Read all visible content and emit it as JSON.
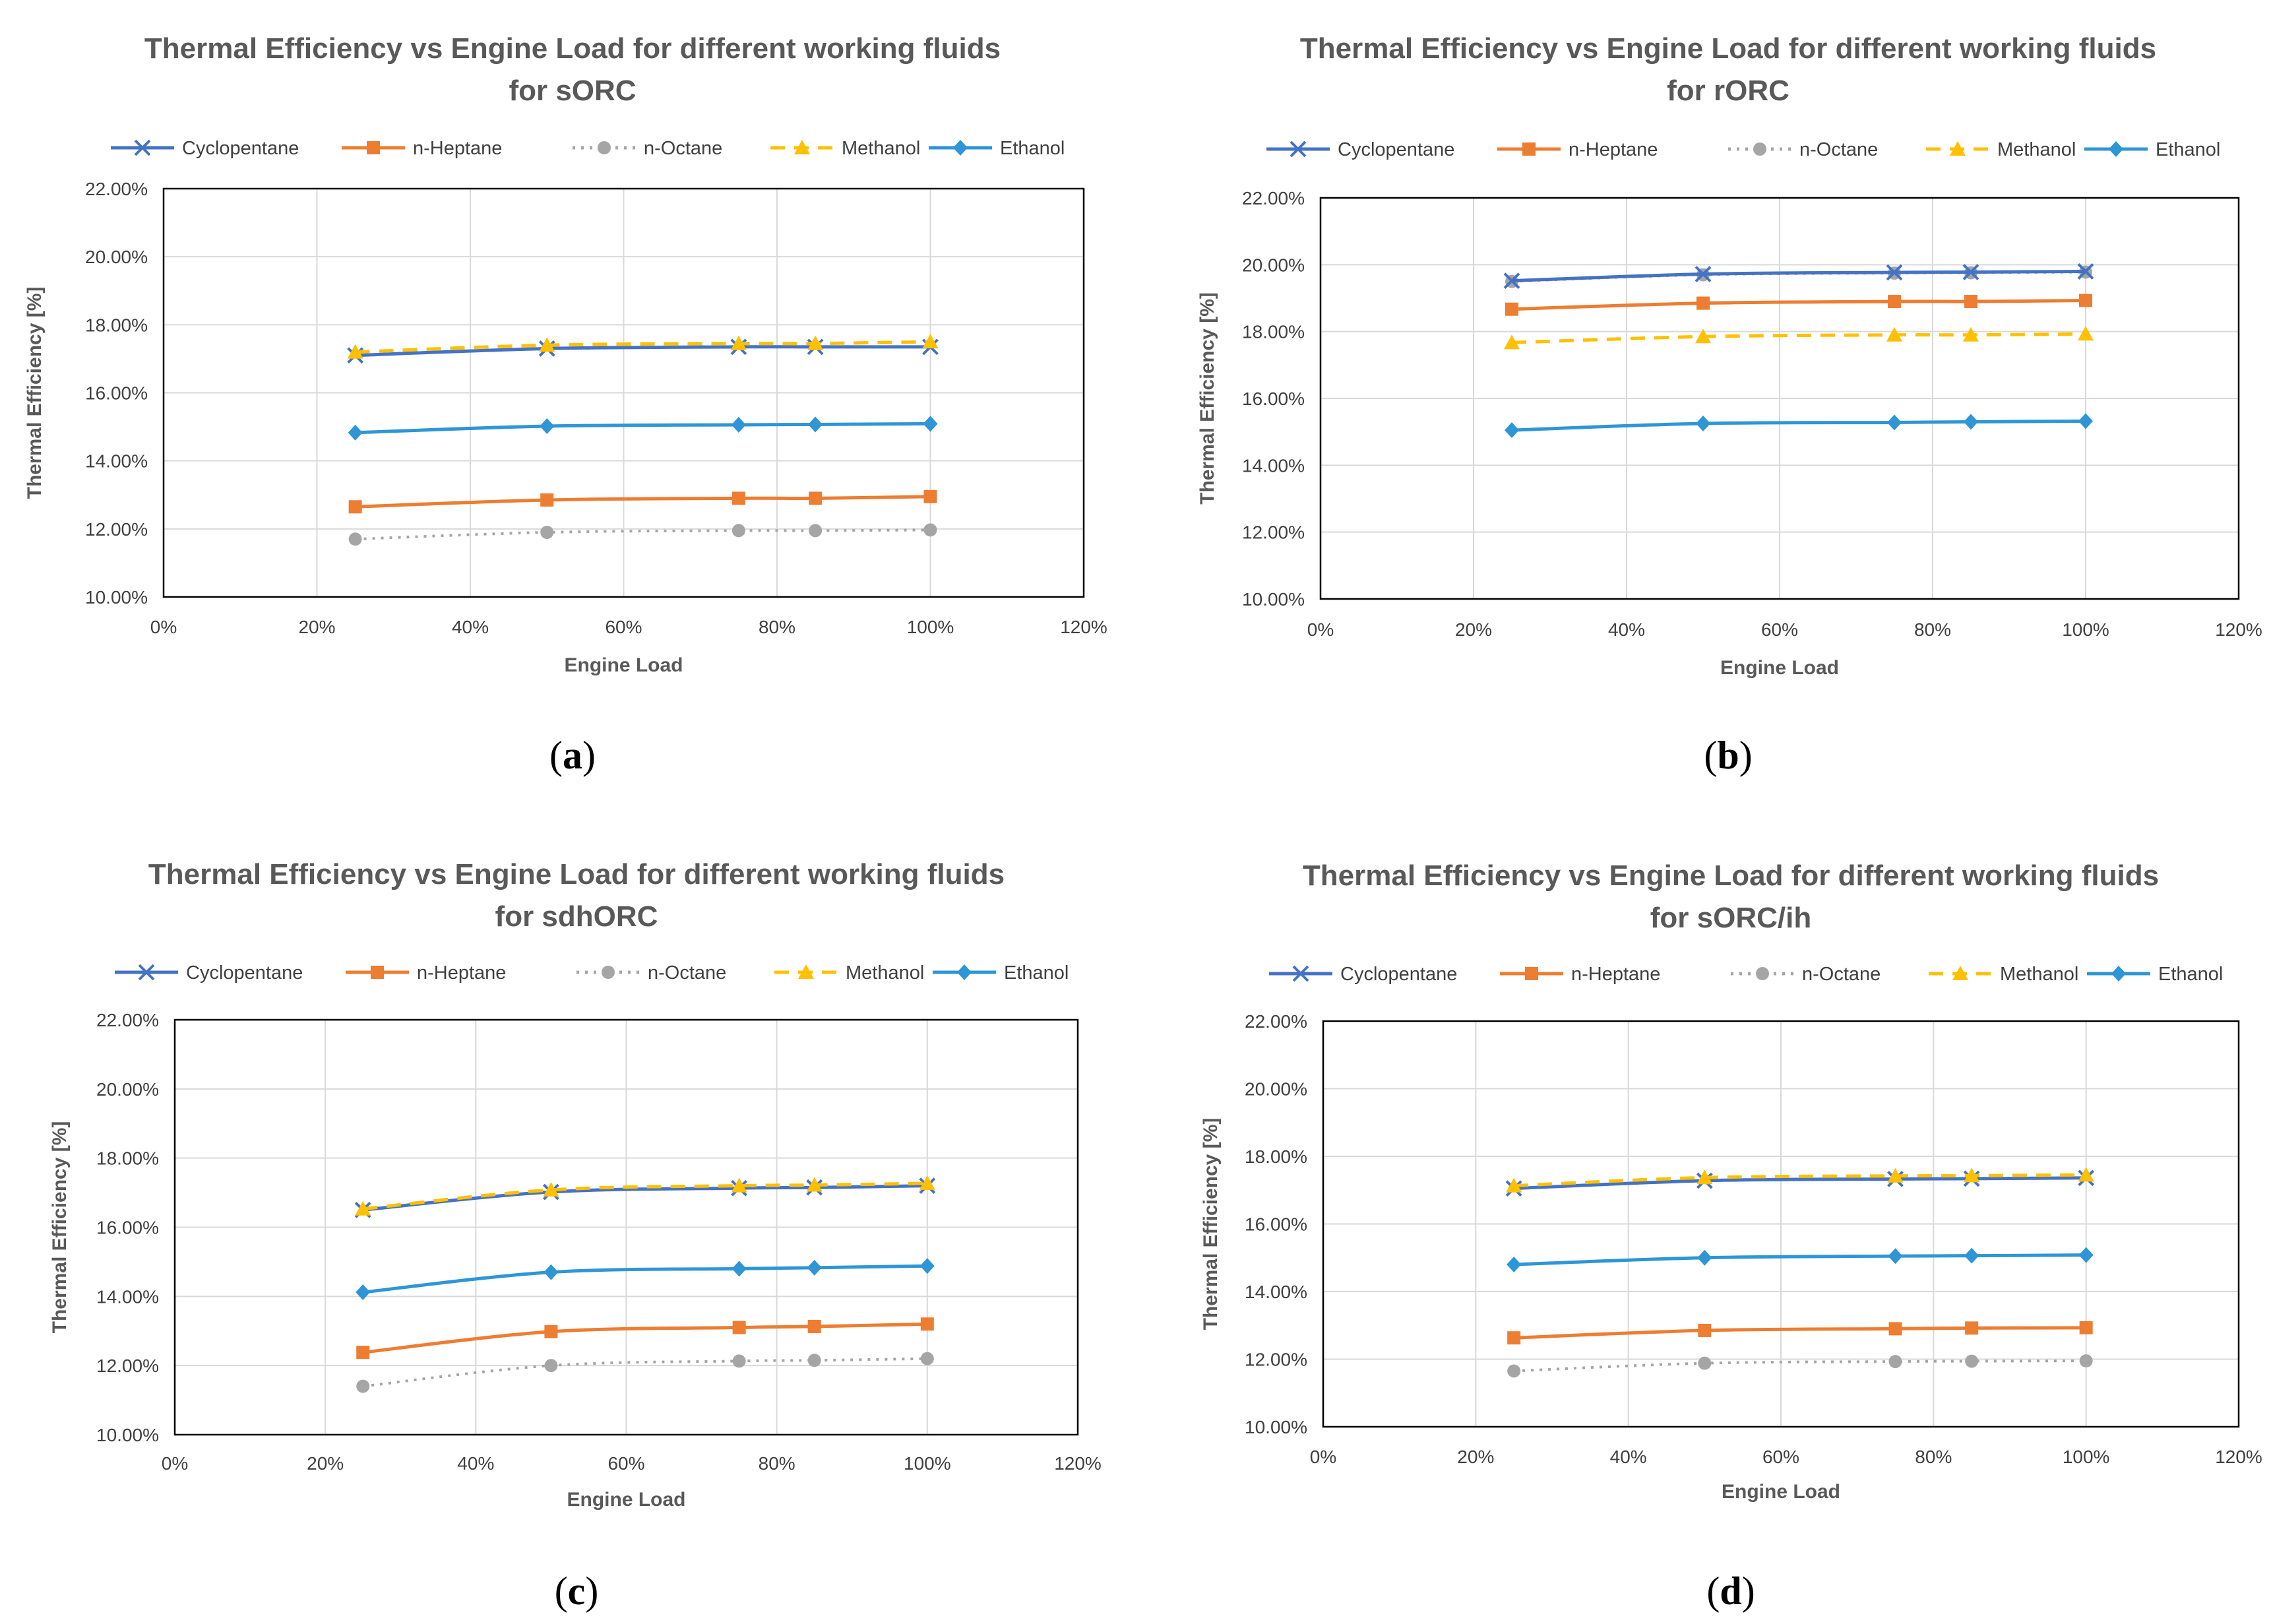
{
  "figure": {
    "legend_order": [
      "Cyclopentane",
      "n-Heptane",
      "n-Octane",
      "Methanol",
      "Ethanol"
    ],
    "series_styles": {
      "Cyclopentane": {
        "color": "#4472c4",
        "marker": "x",
        "dash": "solid"
      },
      "n-Heptane": {
        "color": "#ed7d31",
        "marker": "square",
        "dash": "solid"
      },
      "n-Octane": {
        "color": "#a5a5a5",
        "marker": "circle",
        "dash": "dot"
      },
      "Methanol": {
        "color": "#ffc000",
        "marker": "triangle",
        "dash": "dash"
      },
      "Ethanol": {
        "color": "#2e96d6",
        "marker": "diamond",
        "dash": "solid"
      }
    }
  },
  "chart_data": [
    {
      "panel_label": "a",
      "type": "line",
      "title_line1": "Thermal Efficiency vs Engine Load for different working fluids",
      "title_line2": "for sORC",
      "xlabel": "Engine Load",
      "ylabel": "Thermal Efficiency [%]",
      "xlim": [
        0,
        120
      ],
      "ylim": [
        10,
        22
      ],
      "x_ticks": [
        "0%",
        "20%",
        "40%",
        "60%",
        "80%",
        "100%",
        "120%"
      ],
      "y_ticks": [
        "10.00%",
        "12.00%",
        "14.00%",
        "16.00%",
        "18.00%",
        "20.00%",
        "22.00%"
      ],
      "x": [
        25,
        50,
        75,
        85,
        100
      ],
      "series": [
        {
          "name": "Cyclopentane",
          "values": [
            17.1,
            17.3,
            17.35,
            17.35,
            17.35
          ]
        },
        {
          "name": "n-Heptane",
          "values": [
            12.65,
            12.85,
            12.9,
            12.9,
            12.95
          ]
        },
        {
          "name": "n-Octane",
          "values": [
            11.7,
            11.9,
            11.95,
            11.95,
            11.97
          ]
        },
        {
          "name": "Methanol",
          "values": [
            17.2,
            17.4,
            17.45,
            17.45,
            17.5
          ]
        },
        {
          "name": "Ethanol",
          "values": [
            14.83,
            15.02,
            15.06,
            15.07,
            15.09
          ]
        }
      ]
    },
    {
      "panel_label": "b",
      "type": "line",
      "title_line1": "Thermal Efficiency vs Engine Load for different working fluids",
      "title_line2": "for rORC",
      "xlabel": "Engine Load",
      "ylabel": "Thermal Efficiency [%]",
      "xlim": [
        0,
        120
      ],
      "ylim": [
        10,
        22
      ],
      "x_ticks": [
        "0%",
        "20%",
        "40%",
        "60%",
        "80%",
        "100%",
        "120%"
      ],
      "y_ticks": [
        "10.00%",
        "12.00%",
        "14.00%",
        "16.00%",
        "18.00%",
        "20.00%",
        "22.00%"
      ],
      "x": [
        25,
        50,
        75,
        85,
        100
      ],
      "series": [
        {
          "name": "Cyclopentane",
          "values": [
            19.52,
            19.72,
            19.77,
            19.78,
            19.8
          ]
        },
        {
          "name": "n-Heptane",
          "values": [
            18.67,
            18.85,
            18.9,
            18.9,
            18.93
          ]
        },
        {
          "name": "n-Octane",
          "values": [
            19.5,
            19.7,
            19.75,
            19.76,
            19.78
          ]
        },
        {
          "name": "Methanol",
          "values": [
            17.67,
            17.85,
            17.9,
            17.9,
            17.93
          ]
        },
        {
          "name": "Ethanol",
          "values": [
            15.05,
            15.25,
            15.28,
            15.3,
            15.32
          ]
        }
      ]
    },
    {
      "panel_label": "c",
      "type": "line",
      "title_line1": "Thermal Efficiency vs Engine Load for different working fluids",
      "title_line2": "for sdhORC",
      "xlabel": "Engine Load",
      "ylabel": "Thermal Efficiency [%]",
      "xlim": [
        0,
        120
      ],
      "ylim": [
        10,
        22
      ],
      "x_ticks": [
        "0%",
        "20%",
        "40%",
        "60%",
        "80%",
        "100%",
        "120%"
      ],
      "y_ticks": [
        "10.00%",
        "12.00%",
        "14.00%",
        "16.00%",
        "18.00%",
        "20.00%",
        "22.00%"
      ],
      "x": [
        25,
        50,
        75,
        85,
        100
      ],
      "series": [
        {
          "name": "Cyclopentane",
          "values": [
            16.5,
            17.02,
            17.13,
            17.15,
            17.2
          ]
        },
        {
          "name": "n-Heptane",
          "values": [
            12.38,
            12.98,
            13.1,
            13.13,
            13.2
          ]
        },
        {
          "name": "n-Octane",
          "values": [
            11.4,
            12.0,
            12.13,
            12.15,
            12.2
          ]
        },
        {
          "name": "Methanol",
          "values": [
            16.53,
            17.08,
            17.2,
            17.22,
            17.27
          ]
        },
        {
          "name": "Ethanol",
          "values": [
            14.12,
            14.7,
            14.8,
            14.83,
            14.88
          ]
        }
      ]
    },
    {
      "panel_label": "d",
      "type": "line",
      "title_line1": "Thermal Efficiency vs Engine Load for different working fluids",
      "title_line2": "for sORC/ih",
      "xlabel": "Engine Load",
      "ylabel": "Thermal Efficiency [%]",
      "xlim": [
        0,
        120
      ],
      "ylim": [
        10,
        22
      ],
      "x_ticks": [
        "0%",
        "20%",
        "40%",
        "60%",
        "80%",
        "100%",
        "120%"
      ],
      "y_ticks": [
        "10.00%",
        "12.00%",
        "14.00%",
        "16.00%",
        "18.00%",
        "20.00%",
        "22.00%"
      ],
      "x": [
        25,
        50,
        75,
        85,
        100
      ],
      "series": [
        {
          "name": "Cyclopentane",
          "values": [
            17.05,
            17.28,
            17.33,
            17.34,
            17.36
          ]
        },
        {
          "name": "n-Heptane",
          "values": [
            12.63,
            12.85,
            12.9,
            12.92,
            12.93
          ]
        },
        {
          "name": "n-Octane",
          "values": [
            11.65,
            11.88,
            11.93,
            11.94,
            11.95
          ]
        },
        {
          "name": "Methanol",
          "values": [
            17.13,
            17.37,
            17.42,
            17.43,
            17.45
          ]
        },
        {
          "name": "Ethanol",
          "values": [
            14.8,
            15.0,
            15.05,
            15.06,
            15.08
          ]
        }
      ]
    }
  ]
}
